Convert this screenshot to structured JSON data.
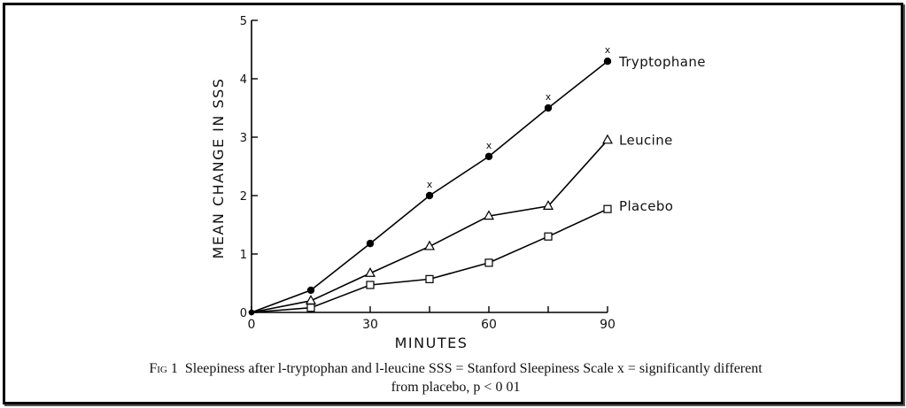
{
  "chart_data": {
    "type": "line",
    "title": "",
    "xlabel": "MINUTES",
    "ylabel": "MEAN CHANGE IN SSS",
    "xlim": [
      0,
      90
    ],
    "ylim": [
      0,
      5
    ],
    "xticks": [
      0,
      30,
      60,
      90
    ],
    "yticks": [
      0,
      1,
      2,
      3,
      4,
      5
    ],
    "grid": false,
    "legend": "labels at line ends (right)",
    "series": [
      {
        "name": "Tryptophane",
        "marker": "filled-circle",
        "x": [
          0,
          15,
          30,
          45,
          60,
          75,
          90
        ],
        "y": [
          0,
          0.38,
          1.18,
          2.0,
          2.67,
          3.5,
          4.3
        ],
        "significant": [
          false,
          false,
          false,
          true,
          true,
          true,
          true
        ]
      },
      {
        "name": "Leucine",
        "marker": "open-triangle",
        "x": [
          0,
          15,
          30,
          45,
          60,
          75,
          90
        ],
        "y": [
          0,
          0.2,
          0.67,
          1.13,
          1.65,
          1.82,
          2.95
        ]
      },
      {
        "name": "Placebo",
        "marker": "open-square",
        "x": [
          0,
          15,
          30,
          45,
          60,
          75,
          90
        ],
        "y": [
          0,
          0.08,
          0.47,
          0.57,
          0.85,
          1.3,
          1.77
        ]
      }
    ],
    "significance_marker": "x"
  },
  "caption": {
    "label": "Fig 1",
    "line1": "Sleepiness after l-tryptophan and l-leucine  SSS = Stanford Sleepiness Scale  x = significantly different",
    "line2": "from placebo, p < 0 01"
  }
}
